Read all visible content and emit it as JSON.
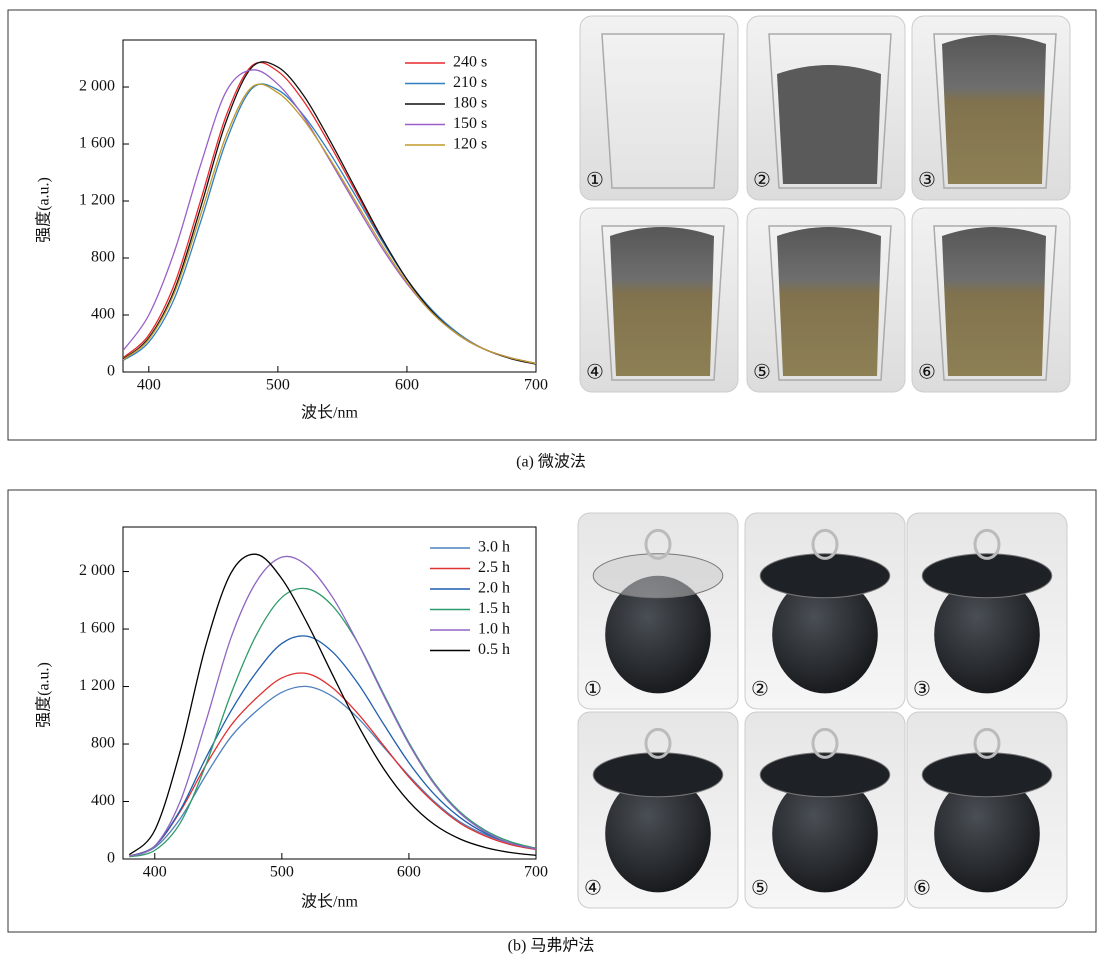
{
  "chart_data": [
    {
      "type": "line",
      "x": [
        380,
        400,
        420,
        440,
        460,
        480,
        500,
        520,
        540,
        560,
        580,
        600,
        620,
        640,
        660,
        680,
        700
      ],
      "xlim": [
        380,
        700
      ],
      "xticks": [
        400,
        500,
        600,
        700
      ],
      "ylim": [
        0,
        2330
      ],
      "yticks": [
        0,
        400,
        800,
        {
          "value": 1200,
          "label": "1 200"
        },
        {
          "value": 1600,
          "label": "1 600"
        },
        {
          "value": 2000,
          "label": "2 000"
        }
      ],
      "x_label": "波长/nm",
      "y_label": "强度(a.u.)",
      "legend": "upper right",
      "series": [
        {
          "name": "240 s",
          "color": "#e8282b",
          "values": [
            100,
            260,
            620,
            1200,
            1800,
            2150,
            2110,
            1900,
            1600,
            1270,
            940,
            650,
            420,
            260,
            160,
            100,
            60
          ]
        },
        {
          "name": "210 s",
          "color": "#2f7fc1",
          "values": [
            80,
            210,
            520,
            1050,
            1620,
            1990,
            1980,
            1800,
            1540,
            1240,
            930,
            650,
            430,
            270,
            160,
            100,
            60
          ]
        },
        {
          "name": "180 s",
          "color": "#111111",
          "values": [
            90,
            240,
            580,
            1150,
            1760,
            2140,
            2140,
            1940,
            1630,
            1290,
            950,
            650,
            420,
            260,
            160,
            95,
            55
          ]
        },
        {
          "name": "150 s",
          "color": "#9a5fc8",
          "values": [
            150,
            400,
            850,
            1450,
            1970,
            2120,
            2020,
            1790,
            1490,
            1180,
            880,
            620,
            410,
            260,
            160,
            100,
            60
          ]
        },
        {
          "name": "120 s",
          "color": "#c09a2a",
          "values": [
            85,
            230,
            560,
            1100,
            1660,
            2000,
            1960,
            1770,
            1500,
            1200,
            900,
            630,
            410,
            260,
            160,
            100,
            60
          ]
        }
      ]
    },
    {
      "type": "line",
      "x": [
        380,
        400,
        420,
        440,
        460,
        480,
        500,
        520,
        540,
        560,
        580,
        600,
        620,
        640,
        660,
        680,
        700
      ],
      "xlim": [
        375,
        700
      ],
      "xticks": [
        400,
        500,
        600,
        700
      ],
      "ylim": [
        0,
        2310
      ],
      "yticks": [
        0,
        400,
        800,
        {
          "value": 1200,
          "label": "1 200"
        },
        {
          "value": 1600,
          "label": "1 600"
        },
        {
          "value": 2000,
          "label": "2 000"
        }
      ],
      "x_label": "波长/nm",
      "y_label": "强度(a.u.)",
      "legend": "upper right",
      "series": [
        {
          "name": "3.0 h",
          "color": "#4f81bd",
          "values": [
            20,
            80,
            280,
            580,
            850,
            1030,
            1160,
            1200,
            1130,
            980,
            780,
            580,
            400,
            260,
            170,
            110,
            75
          ]
        },
        {
          "name": "2.5 h",
          "color": "#e03030",
          "values": [
            20,
            90,
            330,
            650,
            930,
            1120,
            1260,
            1290,
            1190,
            1010,
            790,
            570,
            390,
            250,
            160,
            100,
            65
          ]
        },
        {
          "name": "2.0 h",
          "color": "#1f5fae",
          "values": [
            20,
            90,
            340,
            700,
            1030,
            1300,
            1500,
            1550,
            1440,
            1220,
            940,
            670,
            450,
            290,
            180,
            110,
            70
          ]
        },
        {
          "name": "1.5 h",
          "color": "#2e9b6a",
          "values": [
            15,
            60,
            250,
            650,
            1150,
            1560,
            1820,
            1880,
            1760,
            1500,
            1150,
            810,
            530,
            330,
            200,
            120,
            75
          ]
        },
        {
          "name": "1.0 h",
          "color": "#8f66c3",
          "values": [
            20,
            90,
            400,
            950,
            1540,
            1930,
            2100,
            2040,
            1820,
            1500,
            1140,
            800,
            520,
            320,
            190,
            110,
            70
          ]
        },
        {
          "name": "0.5 h",
          "color": "#000000",
          "values": [
            30,
            200,
            750,
            1480,
            1990,
            2120,
            1950,
            1640,
            1280,
            930,
            630,
            400,
            240,
            140,
            80,
            45,
            25
          ]
        }
      ]
    }
  ],
  "figures": [
    {
      "caption": "(a) 微波法",
      "photo_labels": [
        "①",
        "②",
        "③",
        "④",
        "⑤",
        "⑥"
      ]
    },
    {
      "caption": "(b) 马弗炉法",
      "photo_labels": [
        "①",
        "②",
        "③",
        "④",
        "⑤",
        "⑥"
      ]
    }
  ]
}
